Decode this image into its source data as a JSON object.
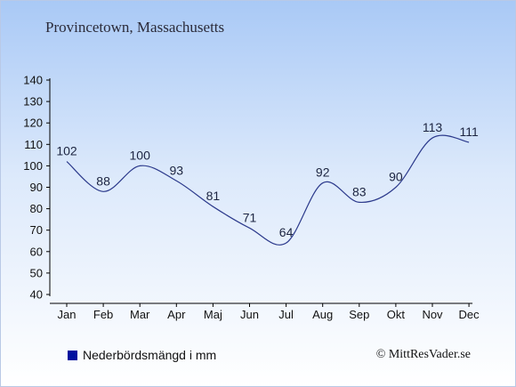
{
  "chart_data": {
    "type": "line",
    "title": "Provincetown, Massachusetts",
    "categories": [
      "Jan",
      "Feb",
      "Mar",
      "Apr",
      "Maj",
      "Jun",
      "Jul",
      "Aug",
      "Sep",
      "Okt",
      "Nov",
      "Dec"
    ],
    "series": [
      {
        "name": "Nederbördsmängd i mm",
        "values": [
          102,
          88,
          100,
          93,
          81,
          71,
          64,
          92,
          83,
          90,
          113,
          111
        ]
      }
    ],
    "ylim": [
      40,
      140
    ],
    "yticks": [
      40,
      50,
      60,
      70,
      80,
      90,
      100,
      110,
      120,
      130,
      140
    ],
    "grid": false,
    "legend": "bottom-left",
    "colors": {
      "line": "#2c3a8c",
      "legend_swatch": "#00109e",
      "axis": "#000000",
      "label": "#1c2440"
    }
  },
  "footer": {
    "copyright": "© MittResVader.se"
  }
}
